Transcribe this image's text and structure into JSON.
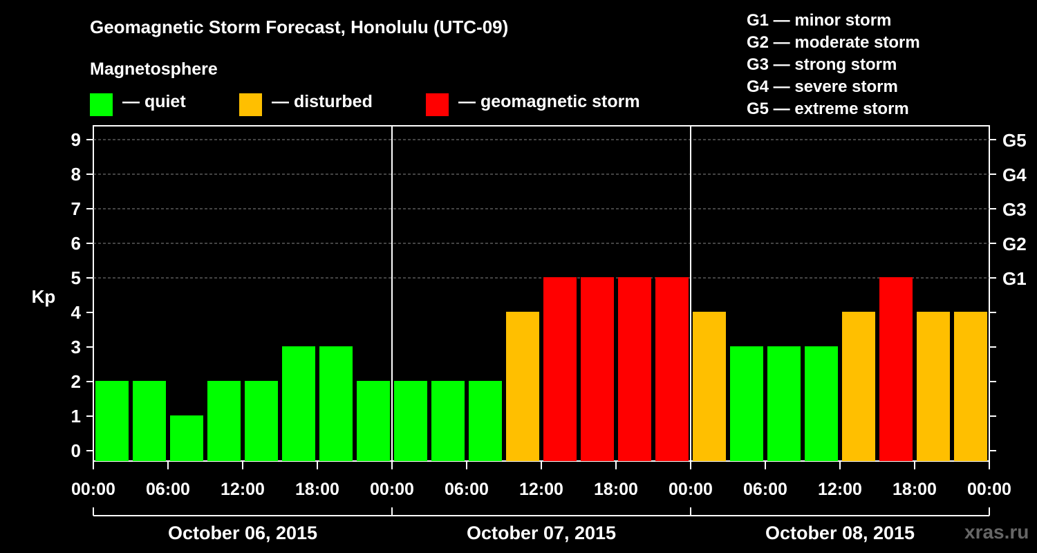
{
  "chart_data": {
    "type": "bar",
    "title": "Geomagnetic Storm Forecast, Honolulu (UTC-09)",
    "subtitle": "Magnetosphere",
    "ylabel": "Kp",
    "ylim": [
      0,
      9
    ],
    "y_ticks": [
      "0",
      "1",
      "2",
      "3",
      "4",
      "5",
      "6",
      "7",
      "8",
      "9"
    ],
    "right_axis_labels": [
      {
        "kp": 5,
        "label": "G1"
      },
      {
        "kp": 6,
        "label": "G2"
      },
      {
        "kp": 7,
        "label": "G3"
      },
      {
        "kp": 8,
        "label": "G4"
      },
      {
        "kp": 9,
        "label": "G5"
      }
    ],
    "x_tick_labels": [
      "00:00",
      "06:00",
      "12:00",
      "18:00",
      "00:00",
      "06:00",
      "12:00",
      "18:00",
      "00:00",
      "06:00",
      "12:00",
      "18:00",
      "00:00"
    ],
    "days": [
      "October 06, 2015",
      "October 07, 2015",
      "October 08, 2015"
    ],
    "values": [
      2,
      2,
      1,
      2,
      2,
      3,
      3,
      2,
      2,
      2,
      2,
      4,
      5,
      5,
      5,
      5,
      4,
      3,
      3,
      3,
      4,
      5,
      4,
      4
    ],
    "colors": {
      "quiet": "#00ff00",
      "disturbed": "#ffbf00",
      "storm": "#ff0000"
    }
  },
  "legend": {
    "quiet": "— quiet",
    "disturbed": "— disturbed",
    "storm": "— geomagnetic storm"
  },
  "g_legend": [
    "G1 — minor storm",
    "G2 — moderate storm",
    "G3 — strong storm",
    "G4 — severe storm",
    "G5 — extreme storm"
  ],
  "watermark": "xras.ru"
}
